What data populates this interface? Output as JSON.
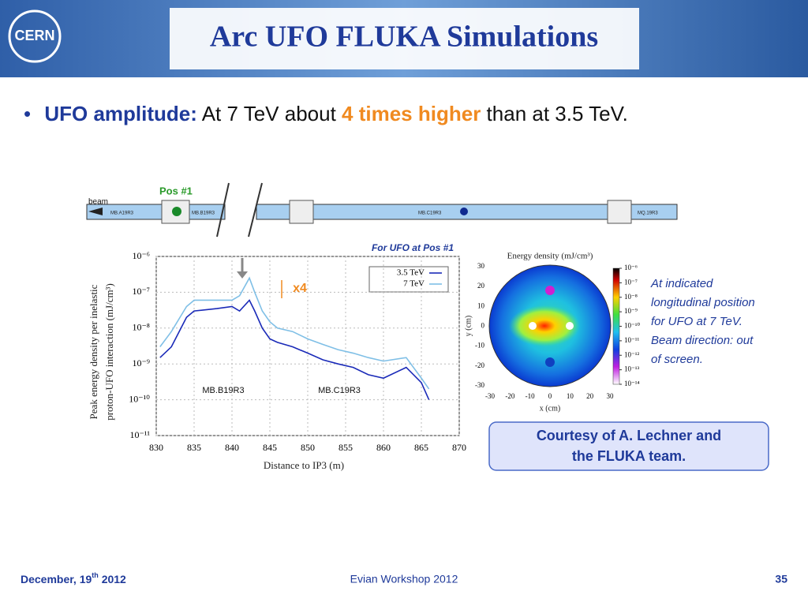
{
  "header": {
    "logo": "CERN",
    "title": "Arc UFO FLUKA Simulations"
  },
  "bullet": {
    "label": "UFO amplitude:",
    "text_before": "At 7 TeV about",
    "highlight": "4 times higher",
    "text_after": "than at 3.5 TeV."
  },
  "beamline": {
    "position": "Pos #1",
    "beam": "beam",
    "elements": [
      "MB.A19R3",
      "MB.B19R3",
      "MB.C19R3",
      "MQ.19R3"
    ]
  },
  "chart_data": {
    "type": "line",
    "caption": "For UFO at Pos #1",
    "xlabel": "Distance to IP3 (m)",
    "ylabel": [
      "Peak energy density per inelastic",
      "proton-UFO interaction (mJ/cm³)"
    ],
    "x": [
      830.5,
      832,
      834,
      835,
      838,
      840,
      841,
      842.3,
      843,
      844,
      845,
      846,
      848,
      850,
      852,
      854,
      856,
      858,
      860,
      863,
      865,
      866
    ],
    "series": [
      {
        "name": "3.5 TeV",
        "color": "#1a2ab8",
        "values": [
          1.5e-09,
          3e-09,
          2e-08,
          3e-08,
          3.5e-08,
          4e-08,
          3e-08,
          6e-08,
          3e-08,
          1e-08,
          5e-09,
          4e-09,
          3e-09,
          2e-09,
          1.3e-09,
          1e-09,
          8e-10,
          5e-10,
          4e-10,
          8e-10,
          3e-10,
          1e-10
        ]
      },
      {
        "name": "7 TeV",
        "color": "#7fbfe6",
        "values": [
          3e-09,
          8e-09,
          4e-08,
          6e-08,
          6e-08,
          6e-08,
          8e-08,
          2.5e-07,
          1e-07,
          3e-08,
          1.5e-08,
          1e-08,
          8e-09,
          5e-09,
          3.5e-09,
          2.5e-09,
          2e-09,
          1.5e-09,
          1.2e-09,
          1.5e-09,
          4e-10,
          2e-10
        ]
      }
    ],
    "xlim": [
      830,
      870
    ],
    "xticks": [
      830,
      835,
      840,
      845,
      850,
      855,
      860,
      865,
      870
    ],
    "ylim": [
      1e-11,
      1e-06
    ],
    "yticks": [
      {
        "value": 1e-06,
        "label": "10⁻⁶"
      },
      {
        "value": 1e-07,
        "label": "10⁻⁷"
      },
      {
        "value": 1e-08,
        "label": "10⁻⁸"
      },
      {
        "value": 1e-09,
        "label": "10⁻⁹"
      },
      {
        "value": 1e-10,
        "label": "10⁻¹⁰"
      },
      {
        "value": 1e-11,
        "label": "10⁻¹¹"
      }
    ],
    "yscale": "log",
    "grid": true,
    "legend": "upper right",
    "annotations": [
      "x4",
      "MB.B19R3",
      "MB.C19R3"
    ]
  },
  "heatmap": {
    "title": "Energy density (mJ/cm³)",
    "xlabel": "x (cm)",
    "ylabel": "y (cm)",
    "xlim": [
      -30,
      30
    ],
    "ylim": [
      -30,
      30
    ],
    "xticks": [
      -30,
      -20,
      -10,
      0,
      10,
      20,
      30
    ],
    "yticks": [
      -30,
      -20,
      -10,
      0,
      10,
      20,
      30
    ],
    "colorbar_ticks": [
      {
        "value": 1e-06,
        "label": "10⁻⁶"
      },
      {
        "value": 1e-07,
        "label": "10⁻⁷"
      },
      {
        "value": 1e-08,
        "label": "10⁻⁸"
      },
      {
        "value": 1e-09,
        "label": "10⁻⁹"
      },
      {
        "value": 1e-10,
        "label": "10⁻¹⁰"
      },
      {
        "value": 1e-11,
        "label": "10⁻¹¹"
      },
      {
        "value": 1e-12,
        "label": "10⁻¹²"
      },
      {
        "value": 1e-13,
        "label": "10⁻¹³"
      },
      {
        "value": 1e-14,
        "label": "10⁻¹⁴"
      }
    ]
  },
  "note": [
    "At indicated",
    "longitudinal position",
    "for UFO at 7 TeV.",
    "Beam direction: out",
    "of screen."
  ],
  "courtesy": [
    "Courtesy of A. Lechner and",
    "the FLUKA team."
  ],
  "footer": {
    "date": "December, 19",
    "date_suffix": "th",
    "date_year": "2012",
    "event": "Evian Workshop 2012",
    "page": "35"
  }
}
